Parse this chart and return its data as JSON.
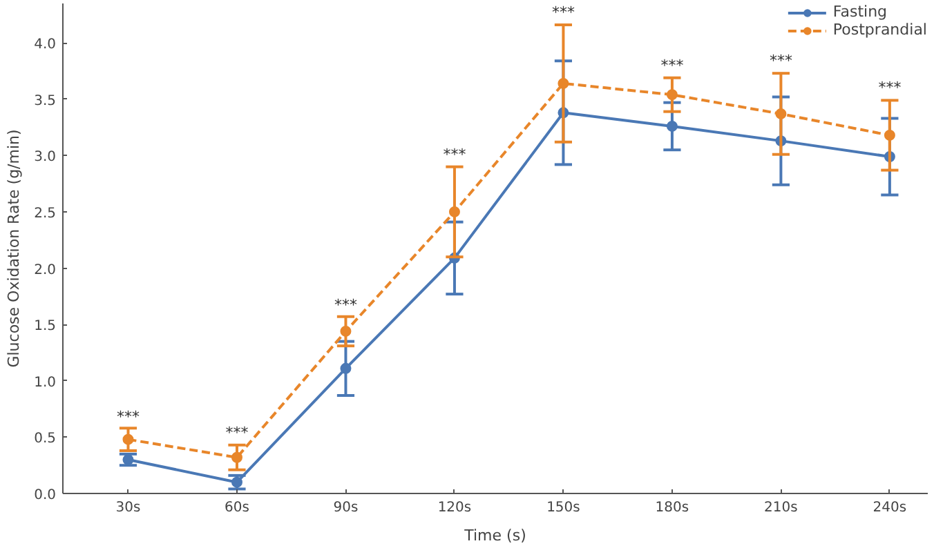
{
  "chart_data": {
    "type": "line",
    "xlabel": "Time (s)",
    "ylabel": "Glucose Oxidation Rate (g/min)",
    "categories": [
      "30s",
      "60s",
      "90s",
      "120s",
      "150s",
      "180s",
      "210s",
      "240s"
    ],
    "series": [
      {
        "name": "Fasting",
        "color": "#4a78b5",
        "line_style": "solid",
        "values": [
          0.3,
          0.1,
          1.11,
          2.09,
          3.38,
          3.26,
          3.13,
          2.99
        ],
        "errors": [
          0.05,
          0.06,
          0.24,
          0.32,
          0.46,
          0.21,
          0.39,
          0.34
        ]
      },
      {
        "name": "Postprandial",
        "color": "#e8862a",
        "line_style": "dashed",
        "values": [
          0.48,
          0.32,
          1.44,
          2.5,
          3.64,
          3.54,
          3.37,
          3.18
        ],
        "errors": [
          0.1,
          0.11,
          0.13,
          0.4,
          0.52,
          0.15,
          0.36,
          0.31
        ]
      }
    ],
    "ylim": [
      0,
      4.35
    ],
    "yticks": [
      {
        "value": 0,
        "label": "0.0"
      },
      0.5,
      {
        "value": 1,
        "label": "1.0"
      },
      1.5,
      {
        "value": 2,
        "label": "2.0"
      },
      2.5,
      {
        "value": 3,
        "label": "3.0"
      },
      3.5,
      {
        "value": 4,
        "label": "4.0"
      }
    ],
    "marker": "circle",
    "grid": false,
    "legend": "top right",
    "annotations": [
      {
        "text": "***",
        "x": "30s",
        "y": 0.6
      },
      {
        "text": "***",
        "x": "60s",
        "y": 0.46
      },
      {
        "text": "***",
        "x": "90s",
        "y": 1.59
      },
      {
        "text": "***",
        "x": "120s",
        "y": 2.93
      },
      {
        "text": "***",
        "x": "150s",
        "y": 4.19
      },
      {
        "text": "***",
        "x": "180s",
        "y": 3.72
      },
      {
        "text": "***",
        "x": "210s",
        "y": 3.76
      },
      {
        "text": "***",
        "x": "240s",
        "y": 3.52
      }
    ]
  }
}
